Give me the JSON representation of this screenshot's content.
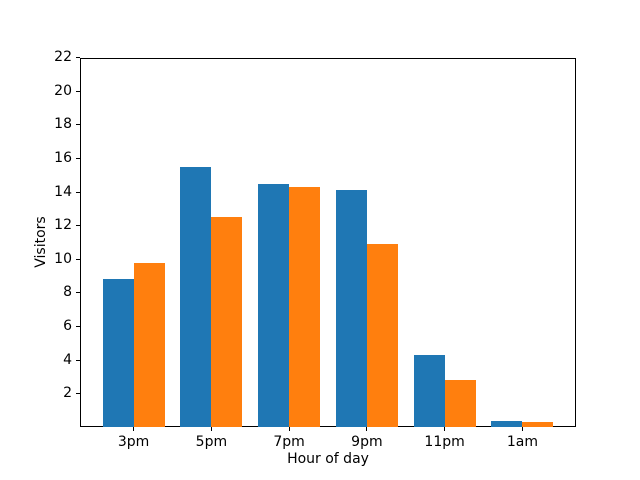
{
  "chart_data": {
    "type": "bar",
    "title": "",
    "xlabel": "Hour of day",
    "ylabel": "Visitors",
    "categories": [
      "3pm",
      "5pm",
      "7pm",
      "9pm",
      "11pm",
      "1am"
    ],
    "series": [
      {
        "name": "blue",
        "color": "#1f77b4",
        "values": [
          8.8,
          15.5,
          14.5,
          14.1,
          4.3,
          0.4
        ]
      },
      {
        "name": "orange",
        "color": "#ff7f0e",
        "values": [
          9.8,
          12.5,
          14.3,
          10.9,
          2.8,
          0.3
        ]
      }
    ],
    "ylim": [
      0,
      22
    ],
    "yticks": [
      2,
      4,
      6,
      8,
      10,
      12,
      14,
      16,
      18,
      20,
      22
    ],
    "bar_width": 0.4,
    "grid": false,
    "legend": "none",
    "spine_color": "#000000",
    "background_color": "#ffffff"
  }
}
